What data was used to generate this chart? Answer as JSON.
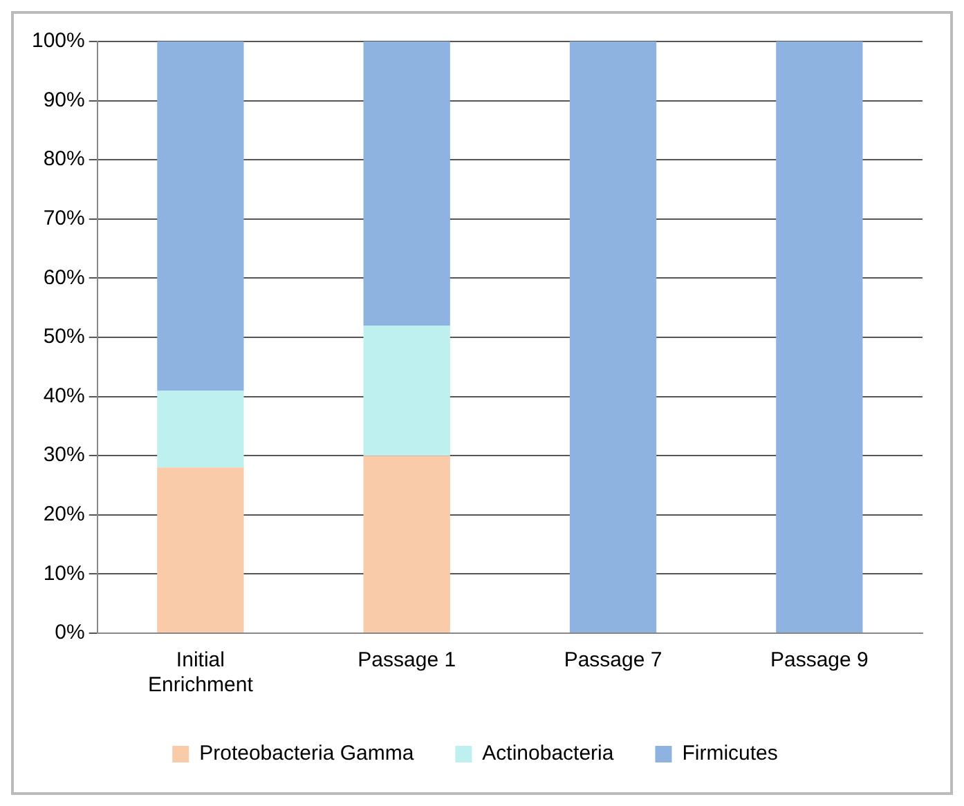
{
  "chart_data": {
    "type": "bar",
    "stacked": true,
    "categories": [
      "Initial Enrichment",
      "Passage 1",
      "Passage 7",
      "Passage 9"
    ],
    "series": [
      {
        "name": "Proteobacteria Gamma",
        "color": "#f9cba8",
        "values": [
          28,
          30,
          0,
          0
        ]
      },
      {
        "name": "Actinobacteria",
        "color": "#bdf0ee",
        "values": [
          13,
          22,
          0,
          0
        ]
      },
      {
        "name": "Firmicutes",
        "color": "#8fb3e0",
        "values": [
          59,
          48,
          100,
          100
        ]
      }
    ],
    "ylim": [
      0,
      100
    ],
    "yticks": [
      {
        "value": 0,
        "label": "0%"
      },
      {
        "value": 10,
        "label": "10%"
      },
      {
        "value": 20,
        "label": "20%"
      },
      {
        "value": 30,
        "label": "30%"
      },
      {
        "value": 40,
        "label": "40%"
      },
      {
        "value": 50,
        "label": "50%"
      },
      {
        "value": 60,
        "label": "60%"
      },
      {
        "value": 70,
        "label": "70%"
      },
      {
        "value": 80,
        "label": "80%"
      },
      {
        "value": 90,
        "label": "90%"
      },
      {
        "value": 100,
        "label": "100%"
      }
    ],
    "grid": "y",
    "legend": "bottom"
  }
}
